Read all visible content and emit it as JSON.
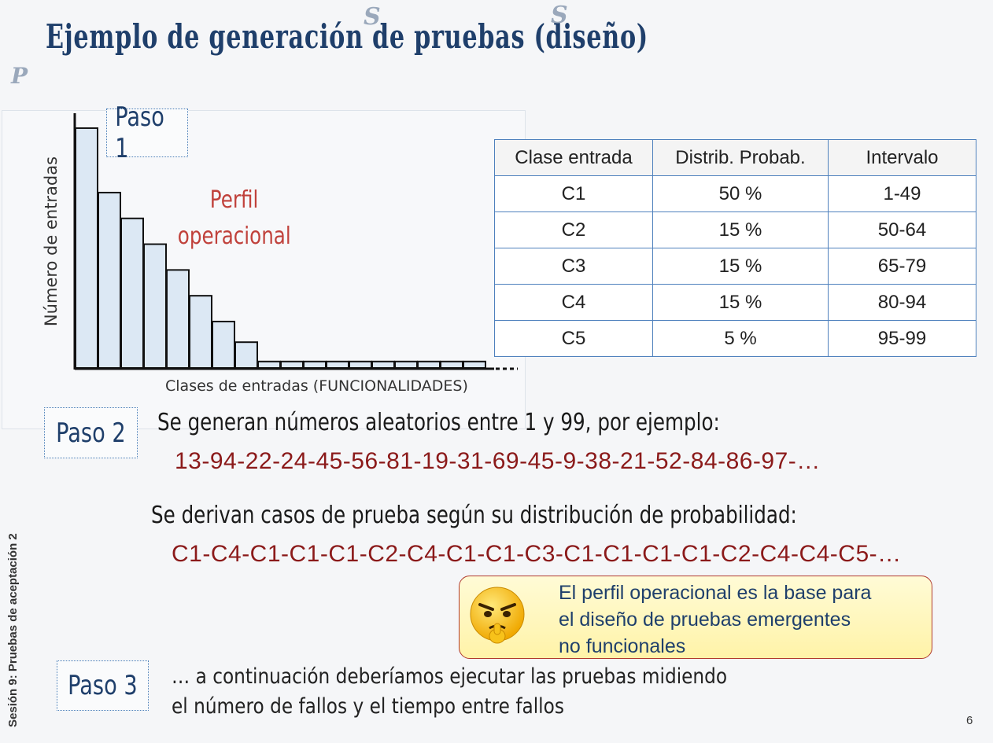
{
  "title": "Ejemplo de generación de pruebas (diseño)",
  "decorations": {
    "s1": "S",
    "s2": "S",
    "p1": "P",
    "p2": "P"
  },
  "chart_data": {
    "type": "bar",
    "ylabel": "Número de entradas",
    "xlabel": "Clases de entradas (FUNCIONALIDADES)",
    "annotation_line1": "Perfil",
    "annotation_line2": "operacional",
    "values": [
      9.3,
      6.8,
      5.8,
      4.8,
      3.8,
      2.8,
      1.8,
      1.0,
      0.25,
      0.25,
      0.25,
      0.25,
      0.25,
      0.25,
      0.25,
      0.25,
      0.25,
      0.25
    ],
    "ylim": [
      0,
      10
    ],
    "colors": {
      "bar_fill": "#dce8f4",
      "bar_stroke": "#111111"
    }
  },
  "steps": {
    "paso1": "Paso 1",
    "paso2": "Paso 2",
    "paso3": "Paso 3"
  },
  "table": {
    "headers": [
      "Clase entrada",
      "Distrib. Probab.",
      "Intervalo"
    ],
    "rows": [
      [
        "C1",
        "50 %",
        "1-49"
      ],
      [
        "C2",
        "15 %",
        "50-64"
      ],
      [
        "C3",
        "15 %",
        "65-79"
      ],
      [
        "C4",
        "15 %",
        "80-94"
      ],
      [
        "C5",
        "5 %",
        "95-99"
      ]
    ]
  },
  "paso2_text": "Se generan números aleatorios entre 1 y 99, por ejemplo:",
  "random_numbers": "13-94-22-24-45-56-81-19-31-69-45-9-38-21-52-84-86-97-…",
  "derive_text": "Se derivan casos de prueba según su distribución de probabilidad:",
  "derived_cases": "C1-C4-C1-C1-C1-C2-C4-C1-C1-C3-C1-C1-C1-C1-C2-C4-C4-C5-…",
  "callout": {
    "line1": "El perfil operacional es la base para",
    "line2": "el diseño de pruebas emergentes",
    "line3": "no funcionales",
    "icon": "thinking-emoji-icon"
  },
  "paso3_line1": "… a continuación deberíamos ejecutar las pruebas midiendo",
  "paso3_line2": "el número de fallos y el tiempo entre fallos",
  "sidebar": "Sesión 9: Pruebas de aceptación 2",
  "page_number": "6"
}
